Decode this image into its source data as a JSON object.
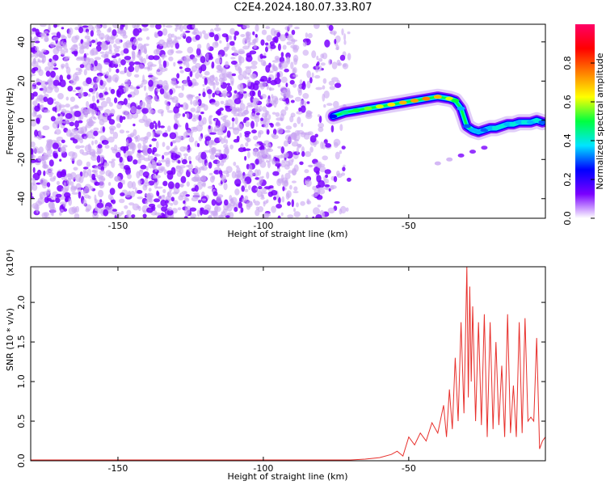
{
  "figure": {
    "title": "C2E4.2024.180.07.33.R07"
  },
  "chart_data": [
    {
      "type": "heatmap",
      "xlabel": "Height of straight line (km)",
      "ylabel": "Frequency (Hz)",
      "xlim": [
        -180,
        -3
      ],
      "ylim": [
        -50,
        49
      ],
      "x_ticks": [
        -150,
        -100,
        -50
      ],
      "x_tick_labels": [
        "-150",
        "-100",
        "-50"
      ],
      "y_ticks": [
        -40,
        -20,
        0,
        20,
        40
      ],
      "y_tick_labels": [
        "-40",
        "-20",
        "0",
        "20",
        "40"
      ],
      "grid": false,
      "colorbar": {
        "label": "Normalized spectral amplitude",
        "range": [
          0,
          1
        ],
        "ticks": [
          0,
          0.2,
          0.4,
          0.6,
          0.8
        ],
        "tick_labels": [
          "0.0",
          "0.2",
          "0.4",
          "0.6",
          "0.8"
        ],
        "colormap": [
          "#ffffff",
          "#7a00ff",
          "#0000ff",
          "#00e5ff",
          "#00ff40",
          "#ffff00",
          "#ff8000",
          "#ff0000",
          "#ff0066"
        ]
      },
      "noise_region": {
        "x": [
          -180,
          -70
        ],
        "y": [
          -50,
          49
        ],
        "color": "#8a2be2"
      },
      "ridge": {
        "x": [
          -76,
          -72,
          -68,
          -64,
          -60,
          -56,
          -52,
          -48,
          -44,
          -40,
          -36,
          -34,
          -32,
          -30,
          -28,
          -26,
          -24,
          -22,
          -20,
          -18,
          -16,
          -14,
          -12,
          -10,
          -8,
          -6,
          -4
        ],
        "y": [
          2,
          4,
          5,
          6,
          7,
          8,
          9,
          10,
          11,
          12,
          11,
          10,
          6,
          -3,
          -5,
          -6,
          -5,
          -4,
          -4,
          -3,
          -2,
          -2,
          -1,
          -1,
          -1,
          0,
          -1
        ],
        "amplitude": [
          0.25,
          0.45,
          0.5,
          0.55,
          0.6,
          0.65,
          0.7,
          0.72,
          0.75,
          0.7,
          0.6,
          0.5,
          0.35,
          0.3,
          0.35,
          0.35,
          0.3,
          0.35,
          0.4,
          0.4,
          0.35,
          0.4,
          0.35,
          0.4,
          0.35,
          0.4,
          0.3
        ]
      },
      "secondary_trace": {
        "x": [
          -24,
          -28,
          -32,
          -36,
          -40
        ],
        "y": [
          -14,
          -16,
          -18,
          -20,
          -22
        ]
      }
    },
    {
      "type": "line",
      "xlabel": "Height of straight line (km)",
      "ylabel": "SNR (10 * v/v)",
      "y_multiplier_label": "(x10⁴)",
      "xlim": [
        -180,
        -3
      ],
      "ylim": [
        0,
        2.45
      ],
      "x_ticks": [
        -150,
        -100,
        -50
      ],
      "x_tick_labels": [
        "-150",
        "-100",
        "-50"
      ],
      "y_ticks": [
        0,
        0.5,
        1.0,
        1.5,
        2.0
      ],
      "y_tick_labels": [
        "0.0",
        "0.5",
        "1.0",
        "1.5",
        "2.0"
      ],
      "grid": false,
      "color": "#e8302c",
      "series": [
        {
          "x": [
            -180,
            -170,
            -160,
            -150,
            -140,
            -130,
            -120,
            -110,
            -100,
            -90,
            -80,
            -70,
            -65,
            -60,
            -56,
            -54,
            -52,
            -50,
            -48,
            -46,
            -44,
            -42,
            -40,
            -38,
            -37,
            -36,
            -35,
            -34,
            -33,
            -32,
            -31,
            -30,
            -29.5,
            -29,
            -28.5,
            -28,
            -27,
            -26,
            -25,
            -24,
            -23,
            -22,
            -21,
            -20,
            -19,
            -18,
            -17,
            -16,
            -15,
            -14,
            -13,
            -12,
            -11,
            -10,
            -9,
            -8,
            -7,
            -6,
            -5,
            -4,
            -3
          ],
          "y": [
            0.01,
            0.01,
            0.01,
            0.01,
            0.01,
            0.01,
            0.01,
            0.01,
            0.01,
            0.01,
            0.01,
            0.01,
            0.02,
            0.04,
            0.08,
            0.12,
            0.06,
            0.3,
            0.2,
            0.35,
            0.25,
            0.48,
            0.35,
            0.7,
            0.3,
            0.9,
            0.4,
            1.3,
            0.5,
            1.75,
            0.6,
            2.45,
            0.8,
            2.2,
            1.0,
            1.95,
            0.5,
            1.75,
            0.45,
            1.85,
            0.3,
            1.75,
            0.4,
            1.5,
            0.45,
            1.2,
            0.3,
            1.85,
            0.35,
            0.95,
            0.3,
            1.75,
            0.35,
            1.8,
            0.5,
            0.55,
            0.5,
            1.55,
            0.15,
            0.25,
            0.3
          ]
        }
      ]
    }
  ]
}
